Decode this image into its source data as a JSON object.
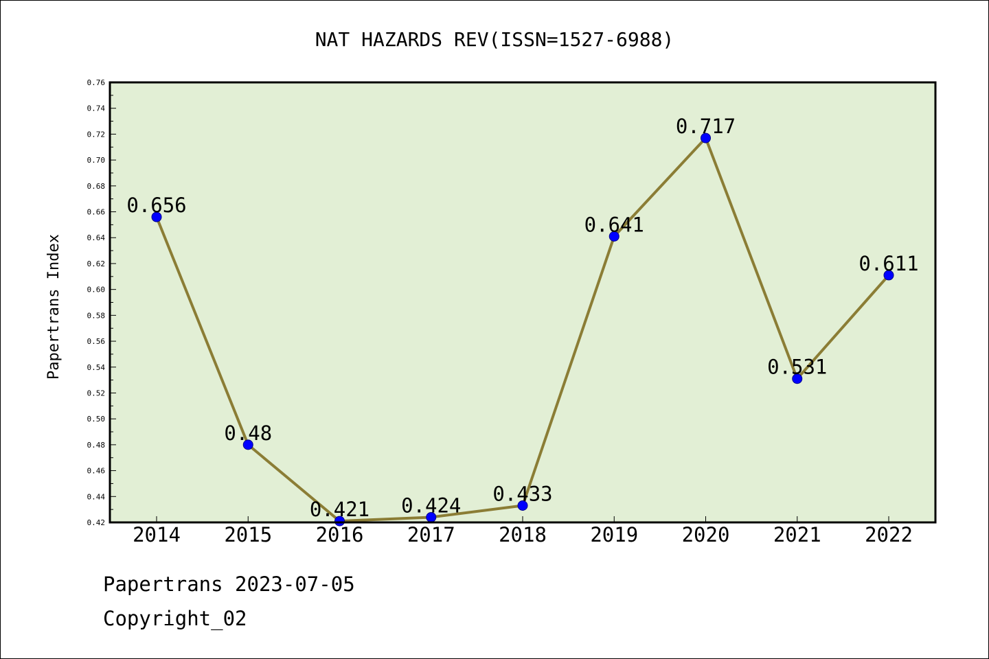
{
  "chart_data": {
    "type": "line",
    "title": "NAT HAZARDS REV(ISSN=1527-6988)",
    "xlabel": "",
    "ylabel": "Papertrans Index",
    "categories": [
      "2014",
      "2015",
      "2016",
      "2017",
      "2018",
      "2019",
      "2020",
      "2021",
      "2022"
    ],
    "values": [
      0.656,
      0.48,
      0.421,
      0.424,
      0.433,
      0.641,
      0.717,
      0.531,
      0.611
    ],
    "data_labels": [
      "0.656",
      "0.48",
      "0.421",
      "0.424",
      "0.433",
      "0.641",
      "0.717",
      "0.531",
      "0.611"
    ],
    "ylim": [
      0.42,
      0.76
    ],
    "yticks": [
      0.42,
      0.44,
      0.46,
      0.48,
      0.5,
      0.52,
      0.54,
      0.56,
      0.58,
      0.6,
      0.62,
      0.64,
      0.66,
      0.68,
      0.7,
      0.72,
      0.74,
      0.76
    ],
    "ytick_labels": [
      "0.42",
      "0.44",
      "0.46",
      "0.48",
      "0.50",
      "0.52",
      "0.54",
      "0.56",
      "0.58",
      "0.60",
      "0.62",
      "0.64",
      "0.66",
      "0.68",
      "0.70",
      "0.72",
      "0.74",
      "0.76"
    ],
    "grid": false,
    "legend": "none",
    "colors": {
      "plot_background": "#e2efd5",
      "line": "#8b7d35",
      "marker": "#0000ff",
      "axis": "#000000"
    }
  },
  "footer": {
    "line1": "Papertrans 2023-07-05",
    "line2": "Copyright_02"
  }
}
